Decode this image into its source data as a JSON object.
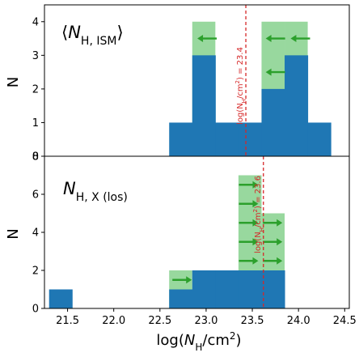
{
  "chart_data": [
    {
      "type": "bar",
      "panel": "top",
      "label_prefix": "⟨",
      "label_main": "N",
      "label_sub": "H, ISM",
      "label_suffix": "⟩",
      "ylabel": "N",
      "ylim": [
        0,
        4.5
      ],
      "yticks": [
        "0",
        "1",
        "2",
        "3",
        "4"
      ],
      "xlim": [
        21.25,
        24.55
      ],
      "bin_width": 0.25,
      "bins_blue": [
        {
          "x0": 22.6,
          "value": 1
        },
        {
          "x0": 22.85,
          "value": 3
        },
        {
          "x0": 23.1,
          "value": 1
        },
        {
          "x0": 23.35,
          "value": 1
        },
        {
          "x0": 23.6,
          "value": 2
        },
        {
          "x0": 23.85,
          "value": 3
        },
        {
          "x0": 24.1,
          "value": 1
        }
      ],
      "bins_green": [
        {
          "x0": 22.85,
          "value": 4
        },
        {
          "x0": 23.6,
          "value": 4
        },
        {
          "x0": 23.85,
          "value": 4
        }
      ],
      "arrows": [
        {
          "x": 23.01,
          "y": 3.5,
          "dir": "left"
        },
        {
          "x": 23.75,
          "y": 3.5,
          "dir": "left"
        },
        {
          "x": 24.02,
          "y": 3.5,
          "dir": "left"
        },
        {
          "x": 23.75,
          "y": 2.5,
          "dir": "left"
        }
      ],
      "vline": {
        "x": 23.43,
        "label_main": "log(N",
        "label_sub": "H",
        "label_mid": "/cm",
        "label_sup": "2",
        "label_end": ") = 23.4"
      },
      "colors": {
        "blue": "#1f77b4",
        "green": "#98d89e",
        "arrow": "#2ca02c",
        "vline": "#d62728"
      }
    },
    {
      "type": "bar",
      "panel": "bottom",
      "label_main": "N",
      "label_sub": "H, X (los)",
      "ylabel": "N",
      "ylim": [
        0,
        8
      ],
      "yticks": [
        "0",
        "2",
        "4",
        "6",
        "8"
      ],
      "xlim": [
        21.25,
        24.55
      ],
      "xticks": [
        "21.5",
        "22.0",
        "22.5",
        "23.0",
        "23.5",
        "24.0",
        "24.5"
      ],
      "xlabel_prefix": "log(",
      "xlabel_main": "N",
      "xlabel_sub": "H",
      "xlabel_mid": "/cm",
      "xlabel_sup": "2",
      "xlabel_end": ")",
      "bin_width": 0.25,
      "bins_blue": [
        {
          "x0": 21.3,
          "value": 1
        },
        {
          "x0": 22.6,
          "value": 1
        },
        {
          "x0": 22.85,
          "value": 2
        },
        {
          "x0": 23.1,
          "value": 2
        },
        {
          "x0": 23.35,
          "value": 2
        },
        {
          "x0": 23.6,
          "value": 2
        }
      ],
      "bins_green": [
        {
          "x0": 22.6,
          "value": 2
        },
        {
          "x0": 23.35,
          "value": 7
        },
        {
          "x0": 23.6,
          "value": 5
        }
      ],
      "arrows": [
        {
          "x": 22.74,
          "y": 1.5,
          "dir": "right"
        },
        {
          "x": 23.46,
          "y": 6.5,
          "dir": "right"
        },
        {
          "x": 23.46,
          "y": 5.5,
          "dir": "right"
        },
        {
          "x": 23.46,
          "y": 4.5,
          "dir": "right"
        },
        {
          "x": 23.46,
          "y": 3.5,
          "dir": "right"
        },
        {
          "x": 23.46,
          "y": 2.5,
          "dir": "right"
        },
        {
          "x": 23.72,
          "y": 4.5,
          "dir": "right"
        },
        {
          "x": 23.72,
          "y": 3.5,
          "dir": "right"
        },
        {
          "x": 23.72,
          "y": 2.5,
          "dir": "right"
        }
      ],
      "vline": {
        "x": 23.62,
        "label_main": "log(N",
        "label_sub": "H",
        "label_mid": "/cm",
        "label_sup": "2",
        "label_end": ") = 23.6"
      },
      "colors": {
        "blue": "#1f77b4",
        "green": "#98d89e",
        "arrow": "#2ca02c",
        "vline": "#d62728"
      }
    }
  ]
}
